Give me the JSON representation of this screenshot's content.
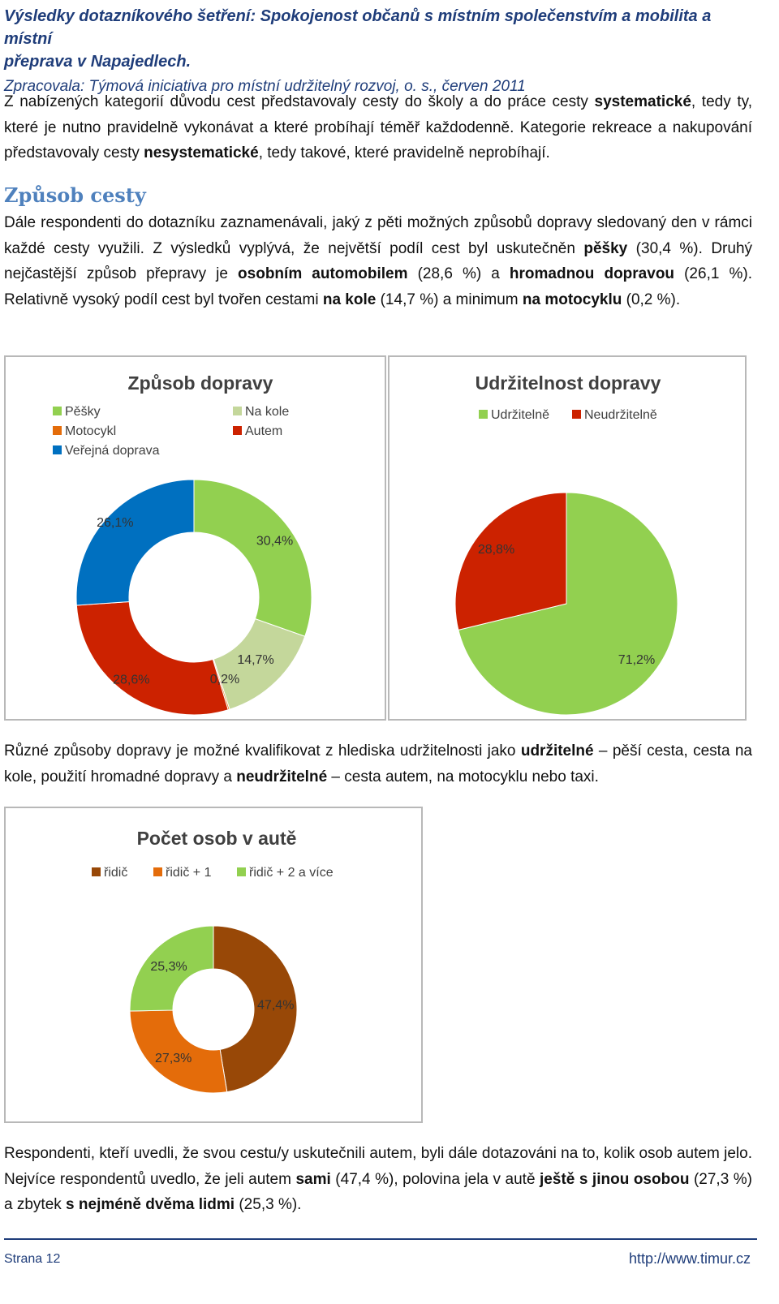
{
  "header": {
    "title_line1": "Výsledky dotazníkového šetření: Spokojenost občanů s místním společenstvím a mobilita a místní",
    "title_line2": "přeprava v Napajedlech.",
    "subtitle": "Zpracovala: Týmová iniciativa pro místní udržitelný rozvoj, o. s., červen 2011"
  },
  "intro": {
    "p1": "Z nabízených kategorií důvodu cest představovaly cesty do školy a do práce cesty ",
    "b1": "systematické",
    "p2": ", tedy ty, které je nutno pravidelně vykonávat a které probíhají téměř každodenně. Kategorie rekreace a nakupování představovaly cesty ",
    "b2": "nesystematické",
    "p3": ", tedy takové, které pravidelně neprobíhají."
  },
  "section": {
    "heading": "Způsob cesty",
    "t1": "Dále respondenti do dotazníku zaznamenávali, jaký z pěti možných způsobů dopravy sledovaný den v rámci každé cesty využili. Z výsledků vyplývá, že největší podíl cest byl uskutečněn ",
    "b1": "pěšky",
    "t2": " (30,4 %). Druhý nejčastější způsob přepravy je ",
    "b2": "osobním automobilem",
    "t3": " (28,6 %) a ",
    "b3": "hromadnou dopravou",
    "t4": " (26,1 %). Relativně vysoký podíl cest byl tvořen cestami ",
    "b4": "na kole",
    "t5": " (14,7 %) a minimum ",
    "b5": "na motocyklu",
    "t6": " (0,2 %)."
  },
  "mid": {
    "t1": "Různé způsoby dopravy je možné kvalifikovat z hlediska udržitelnosti jako ",
    "b1": "udržitelné",
    "t2": " – pěší cesta, cesta na kole, použití hromadné dopravy a ",
    "b2": "neudržitelné",
    "t3": " – cesta autem, na motocyklu nebo taxi."
  },
  "closing": {
    "t1": "Respondenti, kteří uvedli, že svou cestu/y uskutečnili autem, byli dále dotazováni na to, kolik osob autem jelo. Nejvíce respondentů uvedlo, že jeli autem ",
    "b1": "sami",
    "t2": " (47,4 %), polovina jela v autě ",
    "b2": "ještě s jinou osobou",
    "t3": " (27,3 %) a zbytek ",
    "b3": "s nejméně dvěma lidmi",
    "t4": " (25,3 %)."
  },
  "footer": {
    "page": "Strana 12",
    "url": "http://www.timur.cz"
  },
  "chart_data": [
    {
      "type": "pie",
      "donut": true,
      "title": "Způsob dopravy",
      "legend_position": "top",
      "categories": [
        "Pěšky",
        "Na kole",
        "Motocykl",
        "Autem",
        "Veřejná doprava"
      ],
      "values": [
        30.4,
        14.7,
        0.2,
        28.6,
        26.1
      ],
      "labels": [
        "30,4%",
        "14,7%",
        "0,2%",
        "28,6%",
        "26,1%"
      ],
      "colors": [
        "#92d050",
        "#c4d79b",
        "#e46c0a",
        "#cc2200",
        "#0070c0"
      ]
    },
    {
      "type": "pie",
      "donut": true,
      "title": "Udržitelnost dopravy",
      "legend_position": "top",
      "categories": [
        "Udržitelně",
        "Neudržitelně"
      ],
      "values": [
        71.2,
        28.8
      ],
      "labels": [
        "71,2%",
        "28,8%"
      ],
      "colors": [
        "#92d050",
        "#cc2200"
      ]
    },
    {
      "type": "pie",
      "donut": true,
      "title": "Počet osob v autě",
      "legend_position": "top",
      "categories": [
        "řidič",
        "řidič + 1",
        "řidič + 2 a více"
      ],
      "values": [
        47.4,
        27.3,
        25.3
      ],
      "labels": [
        "47,4%",
        "27,3%",
        "25,3%"
      ],
      "colors": [
        "#984807",
        "#e46c0a",
        "#92d050"
      ]
    }
  ]
}
